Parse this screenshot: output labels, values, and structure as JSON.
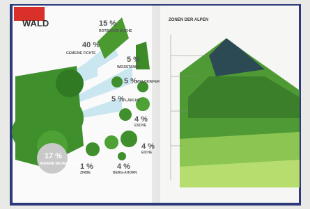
{
  "left_page": {
    "title": "WALD",
    "items": [
      {
        "percent": "40 %",
        "label": "GEMEINE FICHTE"
      },
      {
        "percent": "15 %",
        "label": "ROTBUCHE BUCHE"
      },
      {
        "percent": "5 %",
        "label": "WEISSTANNE"
      },
      {
        "percent": "5 %",
        "label": "WALDKIEFER"
      },
      {
        "percent": "5 %",
        "label": "LÄRCHE"
      },
      {
        "percent": "4 %",
        "label": "ESCHE"
      },
      {
        "percent": "4 %",
        "label": "EICHE"
      },
      {
        "percent": "1 %",
        "label": "ZIRBE"
      },
      {
        "percent": "4 %",
        "label": "BERG-AHORN"
      },
      {
        "percent": "17 %",
        "label": "ANDERE BAUMARTEN"
      }
    ]
  },
  "right_page": {
    "title": "ZONEN DER ALPEN"
  }
}
